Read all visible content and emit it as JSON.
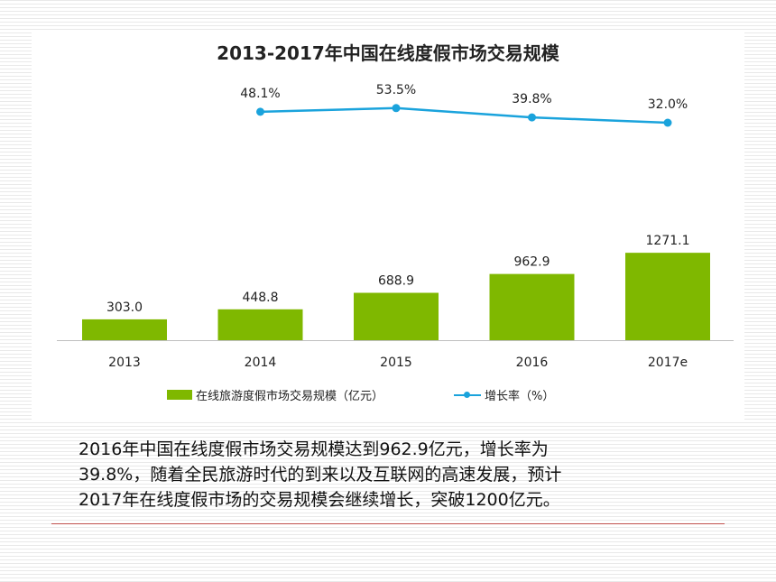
{
  "chart_data": {
    "type": "bar",
    "title": "2013-2017年中国在线度假市场交易规模",
    "categories": [
      "2013",
      "2014",
      "2015",
      "2016",
      "2017e"
    ],
    "series": [
      {
        "name": "在线旅游度假市场交易规模（亿元）",
        "type": "bar",
        "values": [
          303.0,
          448.8,
          688.9,
          962.9,
          1271.1
        ],
        "labels": [
          "303.0",
          "448.8",
          "688.9",
          "962.9",
          "1271.1"
        ],
        "color": "#7fb800"
      },
      {
        "name": "增长率（%）",
        "type": "line",
        "x": [
          "2014",
          "2015",
          "2016",
          "2017e"
        ],
        "values": [
          48.1,
          53.5,
          39.8,
          32.0
        ],
        "labels": [
          "48.1%",
          "53.5%",
          "39.8%",
          "32.0%"
        ],
        "color": "#1aa3dc"
      }
    ],
    "legend_position": "bottom",
    "grid": false
  },
  "caption": {
    "lines": [
      "2016年中国在线度假市场交易规模达到962.9亿元，增长率为",
      "39.8%，随着全民旅游时代的到来以及互联网的高速发展，预计",
      "2017年在线度假市场的交易规模会继续增长，突破1200亿元。"
    ]
  },
  "colors": {
    "axis": "#bfbfbf",
    "divider": "#c0504d",
    "text": "#222222"
  }
}
